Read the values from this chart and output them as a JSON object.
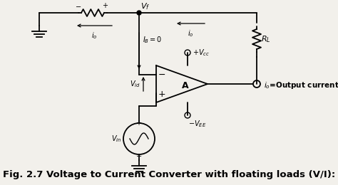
{
  "title": "Fig. 2.7 Voltage to Current Converter with floating loads (V/I):",
  "title_fontsize": 9.5,
  "bg_color": "#f2f0eb",
  "line_color": "black",
  "figsize": [
    4.74,
    2.6
  ],
  "dpi": 100
}
